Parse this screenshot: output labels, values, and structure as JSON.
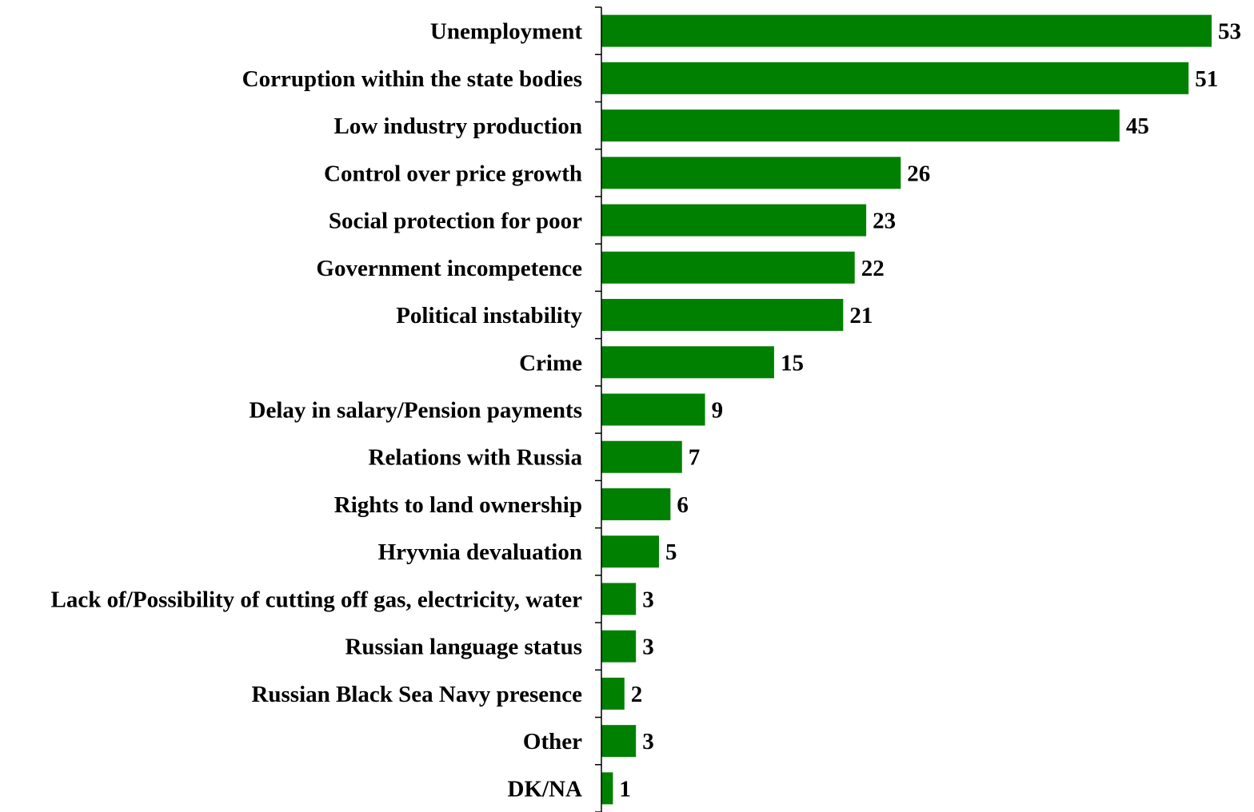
{
  "chart_data": {
    "type": "bar",
    "orientation": "horizontal",
    "categories": [
      "Unemployment",
      "Corruption within the state bodies",
      "Low industry production",
      "Control over price growth",
      "Social protection for poor",
      "Government incompetence",
      "Political instability",
      "Crime",
      "Delay in salary/Pension payments",
      "Relations with Russia",
      "Rights to land ownership",
      "Hryvnia devaluation",
      "Lack of/Possibility of cutting off gas, electricity, water",
      "Russian language status",
      "Russian Black Sea Navy presence",
      "Other",
      "DK/NA"
    ],
    "values": [
      53,
      51,
      45,
      26,
      23,
      22,
      21,
      15,
      9,
      7,
      6,
      5,
      3,
      3,
      2,
      3,
      1
    ],
    "data_labels": [
      "53",
      "51",
      "45",
      "26",
      "23",
      "22",
      "21",
      "15",
      "9",
      "7",
      "6",
      "5",
      "3",
      "3",
      "2",
      "3",
      "1"
    ],
    "xlim": [
      0,
      53
    ],
    "bar_color": "#008000",
    "axis_color": "#000000",
    "grid": false,
    "legend": "none",
    "title": "",
    "xlabel": "",
    "ylabel": ""
  }
}
